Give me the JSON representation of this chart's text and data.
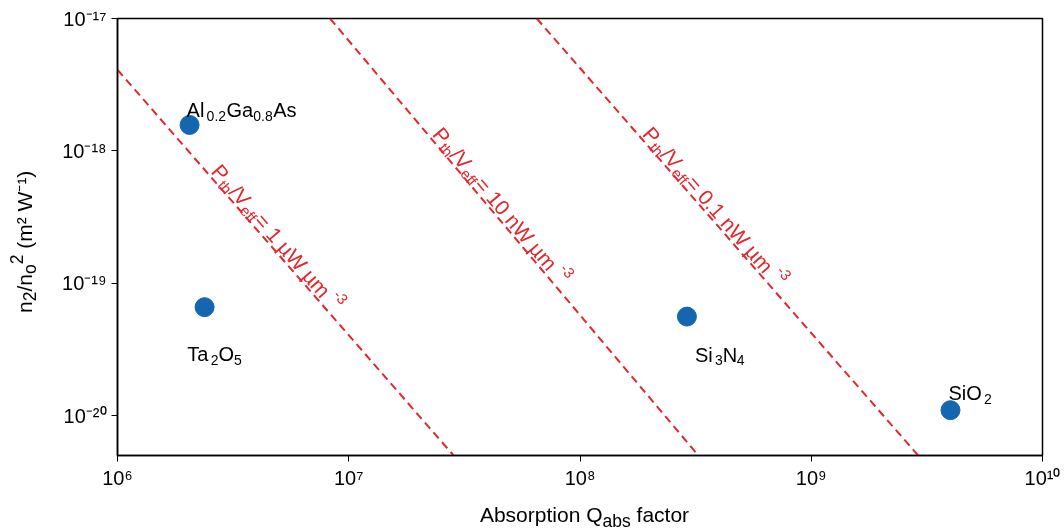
{
  "chart_data": {
    "type": "scatter",
    "xlabel": "Absorption Q$_{abs}$ factor",
    "ylabel": "n$_{2}$/n$_{o}$$^{2}$ (m² W⁻¹)",
    "log": "xy",
    "marker": "circle",
    "xlim": [
      1000000,
      10000000000
    ],
    "ylim": [
      5e-21,
      1e-17
    ],
    "xticks": [
      {
        "value": 1000000,
        "label": "10⁶"
      },
      {
        "value": 10000000,
        "label": "10⁷"
      },
      {
        "value": 100000000,
        "label": "10⁸"
      },
      {
        "value": 1000000000,
        "label": "10⁹"
      },
      {
        "value": 10000000000,
        "label": "10¹⁰"
      }
    ],
    "yticks": [
      {
        "value": 1e-20,
        "label": "10⁻²⁰"
      },
      {
        "value": 1e-19,
        "label": "10⁻¹⁹"
      },
      {
        "value": 1e-18,
        "label": "10⁻¹⁸"
      },
      {
        "value": 1e-17,
        "label": "10⁻¹⁷"
      }
    ],
    "series": [
      {
        "name": "Al$_{0.2}$Ga$_{0.8}$As",
        "color": "#1466b0",
        "x": [
          2050000
        ],
        "values": [
          1.57e-18
        ]
      },
      {
        "name": "Ta$_{2}$O$_{5}$",
        "color": "#1466b0",
        "x": [
          2380000
        ],
        "values": [
          6.6e-20
        ]
      },
      {
        "name": "Si$_{3}$N$_{4}$",
        "color": "#1466b0",
        "x": [
          290000000
        ],
        "values": [
          5.6e-20
        ]
      },
      {
        "name": "SiO$_{2}$",
        "color": "#1466b0",
        "x": [
          4000000000
        ],
        "values": [
          1.1e-20
        ]
      },
      {
        "name": "P$_{th}$/V$_{eff}$ = 1 µW µm$^{-3}$",
        "type": "line",
        "marker": "none",
        "line_style": "dashed",
        "color": "#e0282e",
        "x": [
          1000000,
          28400000
        ],
        "values": [
          4.1e-18,
          5e-21
        ]
      },
      {
        "name": "P$_{th}$/V$_{eff}$ = 10 nW µm$^{-3}$",
        "type": "line",
        "marker": "none",
        "line_style": "dashed",
        "color": "#e0282e",
        "x": [
          8300000,
          325000000
        ],
        "values": [
          1e-17,
          5e-21
        ]
      },
      {
        "name": "P$_{th}$/V$_{eff}$ = 0.1 nW µm$^{-3}$",
        "type": "line",
        "marker": "none",
        "line_style": "dashed",
        "color": "#e0282e",
        "x": [
          65000000,
          2900000000
        ],
        "values": [
          1e-17,
          5e-21
        ]
      }
    ]
  }
}
